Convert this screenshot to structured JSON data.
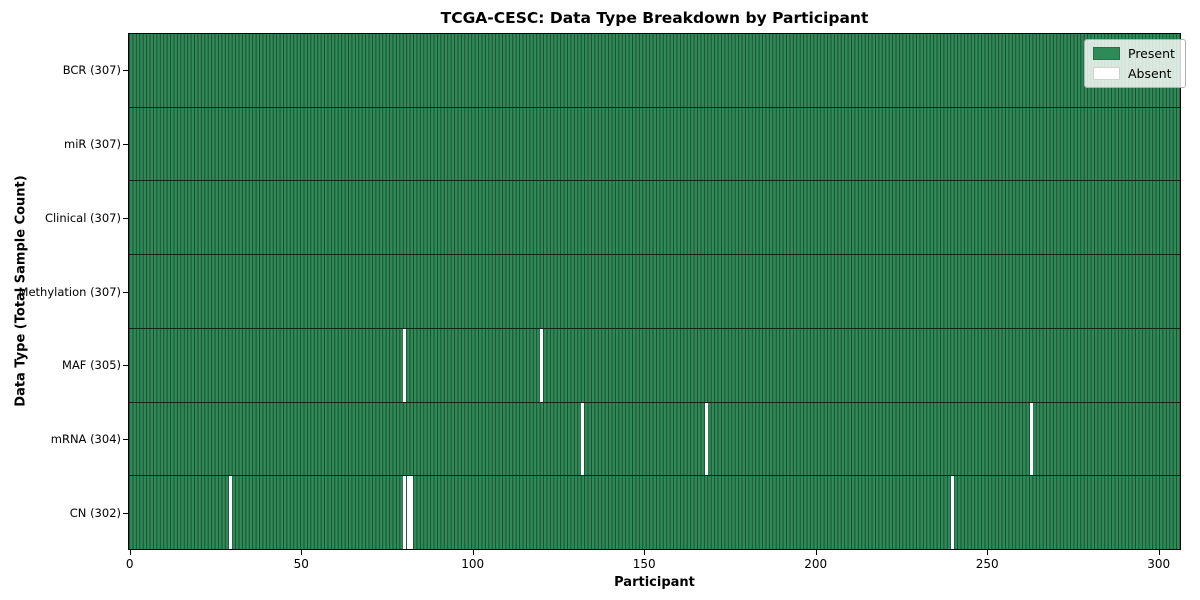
{
  "chart_data": {
    "type": "heatmap",
    "title": "TCGA-CESC: Data Type Breakdown by Participant",
    "xlabel": "Participant",
    "ylabel": "Data Type (Total Sample Count)",
    "n_participants": 307,
    "x_ticks": [
      0,
      50,
      100,
      150,
      200,
      250,
      300
    ],
    "xlim": [
      -0.5,
      306.5
    ],
    "grid": false,
    "legend_position": "upper right",
    "legend": [
      {
        "label": "Present",
        "color": "#2e8b57"
      },
      {
        "label": "Absent",
        "color": "#ffffff"
      }
    ],
    "rows": [
      {
        "name": "BCR",
        "label": "BCR (307)",
        "total": 307,
        "absent_participants": []
      },
      {
        "name": "miR",
        "label": "miR (307)",
        "total": 307,
        "absent_participants": []
      },
      {
        "name": "Clinical",
        "label": "Clinical (307)",
        "total": 307,
        "absent_participants": []
      },
      {
        "name": "Methylation",
        "label": "Methylation (307)",
        "total": 307,
        "absent_participants": []
      },
      {
        "name": "MAF",
        "label": "MAF (305)",
        "total": 305,
        "absent_participants": [
          80,
          120
        ]
      },
      {
        "name": "mRNA",
        "label": "mRNA (304)",
        "total": 304,
        "absent_participants": [
          132,
          168,
          263
        ]
      },
      {
        "name": "CN",
        "label": "CN (302)",
        "total": 302,
        "absent_participants": [
          29,
          80,
          81,
          82,
          240
        ]
      }
    ],
    "colors": {
      "present": "#2e8b57",
      "absent": "#ffffff",
      "cell_edge": "#1e4d33",
      "row_divider": "#0f271a",
      "spine": "#000000",
      "background": "#ffffff"
    }
  }
}
